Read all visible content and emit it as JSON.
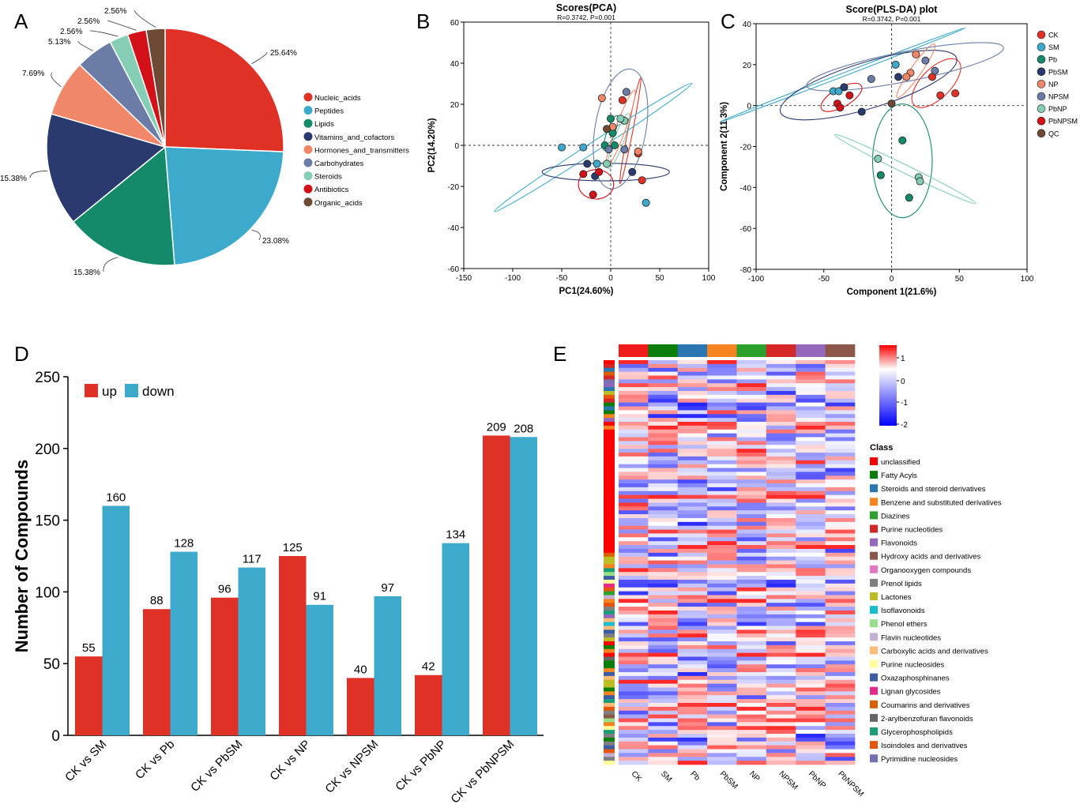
{
  "colors": {
    "red": "#e03127",
    "blue": "#3eaacb",
    "green": "#148a6b",
    "navy": "#2b3a6e",
    "salmon": "#ef8768",
    "slate": "#6b7da7",
    "mint": "#85cdb5",
    "crimson": "#d21118",
    "brown": "#6e4a35",
    "up": "#e03127",
    "down": "#3eaacb"
  },
  "chart_data": [
    {
      "panel": "A",
      "type": "pie",
      "slices": [
        {
          "name": "Nucleic_acids",
          "value": 25.64,
          "label": "25.64%",
          "color": "#e03127"
        },
        {
          "name": "Peptides",
          "value": 23.08,
          "label": "23.08%",
          "color": "#3eaacb"
        },
        {
          "name": "Lipids",
          "value": 15.38,
          "label": "15.38%",
          "color": "#148a6b"
        },
        {
          "name": "Vitamins_and_cofactors",
          "value": 15.38,
          "label": "15.38%",
          "color": "#2b3a6e"
        },
        {
          "name": "Hormones_and_transmitters",
          "value": 7.69,
          "label": "7.69%",
          "color": "#ef8768"
        },
        {
          "name": "Carbohydrates",
          "value": 5.13,
          "label": "5.13%",
          "color": "#6b7da7"
        },
        {
          "name": "Steroids",
          "value": 2.56,
          "label": "2.56%",
          "color": "#85cdb5"
        },
        {
          "name": "Antibiotics",
          "value": 2.56,
          "label": "2.56%",
          "color": "#d21118"
        },
        {
          "name": "Organic_acids",
          "value": 2.56,
          "label": "2.56%",
          "color": "#6e4a35"
        }
      ]
    },
    {
      "panel": "B",
      "type": "scatter",
      "title": "Scores(PCA)",
      "subtitle": "R=0.3742, P=0.001",
      "xlabel": "PC1(24.60%)",
      "ylabel": "PC2(14.20%)",
      "xlim": [
        -150,
        100
      ],
      "ylim": [
        -60,
        60
      ],
      "xticks": [
        -150,
        -100,
        -50,
        0,
        50,
        100
      ],
      "yticks": [
        -60,
        -40,
        -20,
        0,
        20,
        40,
        60
      ],
      "points": [
        {
          "x": 12,
          "y": 22,
          "g": "CK"
        },
        {
          "x": 28,
          "y": -4,
          "g": "CK"
        },
        {
          "x": 32,
          "y": -17,
          "g": "CK"
        },
        {
          "x": -14,
          "y": -9,
          "g": "SM"
        },
        {
          "x": -28,
          "y": -1,
          "g": "SM"
        },
        {
          "x": 36,
          "y": -28,
          "g": "SM"
        },
        {
          "x": -50,
          "y": -1,
          "g": "SM"
        },
        {
          "x": 0,
          "y": 13,
          "g": "Pb"
        },
        {
          "x": 4,
          "y": 0,
          "g": "Pb"
        },
        {
          "x": -6,
          "y": 0,
          "g": "Pb"
        },
        {
          "x": 2,
          "y": 6,
          "g": "Pb"
        },
        {
          "x": -24,
          "y": -9,
          "g": "PbSM"
        },
        {
          "x": -16,
          "y": -15,
          "g": "PbSM"
        },
        {
          "x": 22,
          "y": -13,
          "g": "PbSM"
        },
        {
          "x": -9,
          "y": 23,
          "g": "NP"
        },
        {
          "x": 2,
          "y": 9,
          "g": "NP"
        },
        {
          "x": 28,
          "y": -3,
          "g": "NP"
        },
        {
          "x": 16,
          "y": 26,
          "g": "NPSM"
        },
        {
          "x": 14,
          "y": -2,
          "g": "NPSM"
        },
        {
          "x": -2,
          "y": -2,
          "g": "NPSM"
        },
        {
          "x": 14,
          "y": 12,
          "g": "PbNP"
        },
        {
          "x": 10,
          "y": 13,
          "g": "PbNP"
        },
        {
          "x": -4,
          "y": -9,
          "g": "PbNP"
        },
        {
          "x": -28,
          "y": -14,
          "g": "PbNPSM"
        },
        {
          "x": -12,
          "y": -13,
          "g": "PbNPSM"
        },
        {
          "x": -18,
          "y": -24,
          "g": "PbNPSM"
        },
        {
          "x": -4,
          "y": 8,
          "g": "QC"
        }
      ],
      "ellipses": [
        {
          "g": "CK",
          "cx": 20,
          "cy": 7,
          "rx": 55,
          "ry": 2.5,
          "angle": -79
        },
        {
          "g": "SM",
          "cx": -18,
          "cy": -1,
          "rx": 120,
          "ry": 5,
          "angle": -33
        },
        {
          "g": "Pb",
          "cx": 0,
          "cy": 6,
          "rx": 19,
          "ry": 4,
          "angle": -70
        },
        {
          "g": "PbSM",
          "cx": -5,
          "cy": -13,
          "rx": 65,
          "ry": 9,
          "angle": 0
        },
        {
          "g": "NP",
          "cx": 10,
          "cy": 8,
          "rx": 42,
          "ry": 5,
          "angle": -70
        },
        {
          "g": "NPSM",
          "cx": 10,
          "cy": 8,
          "rx": 62,
          "ry": 26,
          "angle": -80
        },
        {
          "g": "PbNP",
          "cx": 8,
          "cy": 2,
          "rx": 30,
          "ry": 5,
          "angle": -70
        },
        {
          "g": "PbNPSM",
          "cx": -15,
          "cy": -19,
          "rx": 18,
          "ry": 15,
          "angle": 0
        }
      ]
    },
    {
      "panel": "C",
      "type": "scatter",
      "title": "Score(PLS-DA) plot",
      "subtitle": "R=0.3742, P=0.001",
      "xlabel": "Component 1(21.6%)",
      "ylabel": "Component 2(11.3%)",
      "xlim": [
        -100,
        100
      ],
      "ylim": [
        -80,
        40
      ],
      "xticks": [
        -100,
        -50,
        0,
        50,
        100
      ],
      "yticks": [
        -80,
        -60,
        -40,
        -20,
        0,
        20,
        40
      ],
      "points": [
        {
          "x": 30,
          "y": 14,
          "g": "CK"
        },
        {
          "x": 36,
          "y": 5,
          "g": "CK"
        },
        {
          "x": 47,
          "y": 6,
          "g": "CK"
        },
        {
          "x": 3,
          "y": 20,
          "g": "SM"
        },
        {
          "x": -43,
          "y": 7,
          "g": "SM"
        },
        {
          "x": -39,
          "y": 7,
          "g": "SM"
        },
        {
          "x": 8,
          "y": -17,
          "g": "Pb"
        },
        {
          "x": -8,
          "y": -34,
          "g": "Pb"
        },
        {
          "x": 13,
          "y": -45,
          "g": "Pb"
        },
        {
          "x": -35,
          "y": 9,
          "g": "PbSM"
        },
        {
          "x": -22,
          "y": -3,
          "g": "PbSM"
        },
        {
          "x": 5,
          "y": 14,
          "g": "PbSM"
        },
        {
          "x": 18,
          "y": 25,
          "g": "NP"
        },
        {
          "x": 14,
          "y": 16,
          "g": "NP"
        },
        {
          "x": 11,
          "y": 14,
          "g": "NP"
        },
        {
          "x": 25,
          "y": 22,
          "g": "NPSM"
        },
        {
          "x": 32,
          "y": 17,
          "g": "NPSM"
        },
        {
          "x": -15,
          "y": 13,
          "g": "NPSM"
        },
        {
          "x": -10,
          "y": -26,
          "g": "PbNP"
        },
        {
          "x": 20,
          "y": -35,
          "g": "PbNP"
        },
        {
          "x": 21,
          "y": -37,
          "g": "PbNP"
        },
        {
          "x": -31,
          "y": 5,
          "g": "PbNPSM"
        },
        {
          "x": -40,
          "y": 1,
          "g": "PbNPSM"
        },
        {
          "x": -38,
          "y": -1,
          "g": "PbNPSM"
        },
        {
          "x": 0,
          "y": 1,
          "g": "QC"
        }
      ],
      "ellipses": [
        {
          "g": "CK",
          "cx": 33,
          "cy": 11,
          "rx": 23,
          "ry": 11,
          "angle": -45
        },
        {
          "g": "SM",
          "cx": -36,
          "cy": 15,
          "rx": 97,
          "ry": 1.2,
          "angle": -21
        },
        {
          "g": "Pb",
          "cx": 8,
          "cy": -27,
          "rx": 22,
          "ry": 42,
          "angle": 0
        },
        {
          "g": "PbSM",
          "cx": -17,
          "cy": 10,
          "rx": 68,
          "ry": 17,
          "angle": -17
        },
        {
          "g": "NP",
          "cx": 18,
          "cy": 17,
          "rx": 24,
          "ry": 4,
          "angle": -55
        },
        {
          "g": "NPSM",
          "cx": 10,
          "cy": 19,
          "rx": 74,
          "ry": 11,
          "angle": -11
        },
        {
          "g": "PbNP",
          "cx": 10,
          "cy": -31,
          "rx": 58,
          "ry": 3,
          "angle": 26
        },
        {
          "g": "PbNPSM",
          "cx": -37,
          "cy": 4,
          "rx": 17,
          "ry": 7,
          "angle": -30
        }
      ],
      "legend": [
        "CK",
        "SM",
        "Pb",
        "PbSM",
        "NP",
        "NPSM",
        "PbNP",
        "PbNPSM",
        "QC"
      ]
    },
    {
      "panel": "D",
      "type": "bar",
      "ylabel": "Number of Compounds",
      "ylim": [
        0,
        250
      ],
      "yticks": [
        0,
        50,
        100,
        150,
        200,
        250
      ],
      "categories": [
        "CK vs SM",
        "CK vs Pb",
        "CK vs PbSM",
        "CK vs NP",
        "CK vs NPSM",
        "CK vs PbNP",
        "CK vs PbNPSM"
      ],
      "series": [
        {
          "name": "up",
          "values": [
            55,
            88,
            96,
            125,
            40,
            42,
            209
          ]
        },
        {
          "name": "down",
          "values": [
            160,
            128,
            117,
            91,
            97,
            134,
            208
          ]
        }
      ],
      "legend": "top-left"
    },
    {
      "panel": "E",
      "type": "heatmap",
      "columns": [
        "CK",
        "SM",
        "Pb",
        "PbSM",
        "NP",
        "NPSM",
        "PbNP",
        "PbNPSM"
      ],
      "column_colors": [
        "#f01c1c",
        "#0b7d0b",
        "#2a76b3",
        "#f58320",
        "#2ca02c",
        "#d62728",
        "#9467bd",
        "#8c564b"
      ],
      "rows": 105,
      "scale": {
        "min": -2,
        "max": 1.5,
        "ticks": [
          "1",
          "0",
          "-1",
          "-2"
        ]
      },
      "class_title": "Class",
      "classes": [
        {
          "name": "unclassified",
          "color": "#ff0000"
        },
        {
          "name": "Fatty Acyls",
          "color": "#0b7d0b"
        },
        {
          "name": "Steroids and steroid derivatives",
          "color": "#2a76b3"
        },
        {
          "name": "Benzene and substituted derivatives",
          "color": "#f58320"
        },
        {
          "name": "Diazines",
          "color": "#2ca02c"
        },
        {
          "name": "Purine nucleotides",
          "color": "#d62728"
        },
        {
          "name": "Flavonoids",
          "color": "#9467bd"
        },
        {
          "name": "Hydroxy acids and derivatives",
          "color": "#8c564b"
        },
        {
          "name": "Organooxygen compounds",
          "color": "#e377c2"
        },
        {
          "name": "Prenol lipids",
          "color": "#7f7f7f"
        },
        {
          "name": "Lactones",
          "color": "#bcbd22"
        },
        {
          "name": "Isoflavonoids",
          "color": "#17becf"
        },
        {
          "name": "Phenol ethers",
          "color": "#98df8a"
        },
        {
          "name": "Flavin nucleotides",
          "color": "#c5b0d5"
        },
        {
          "name": "Carboxylic acids and derivatives",
          "color": "#ffbb78"
        },
        {
          "name": "Purine nucleosides",
          "color": "#ffff99"
        },
        {
          "name": "Oxazaphosphinanes",
          "color": "#3b5ba5"
        },
        {
          "name": "Lignan glycosides",
          "color": "#e7298a"
        },
        {
          "name": "Coumarins and derivatives",
          "color": "#d95f02"
        },
        {
          "name": "2-arylbenzofuran flavonoids",
          "color": "#666666"
        },
        {
          "name": "Glycerophospholipids",
          "color": "#1b9e77"
        },
        {
          "name": "Isoindoles and derivatives",
          "color": "#e6550d"
        },
        {
          "name": "Pyrimidine nucleosides",
          "color": "#7570b3"
        }
      ]
    }
  ],
  "panels": {
    "a": "A",
    "b": "B",
    "c": "C",
    "d": "D",
    "e": "E"
  }
}
